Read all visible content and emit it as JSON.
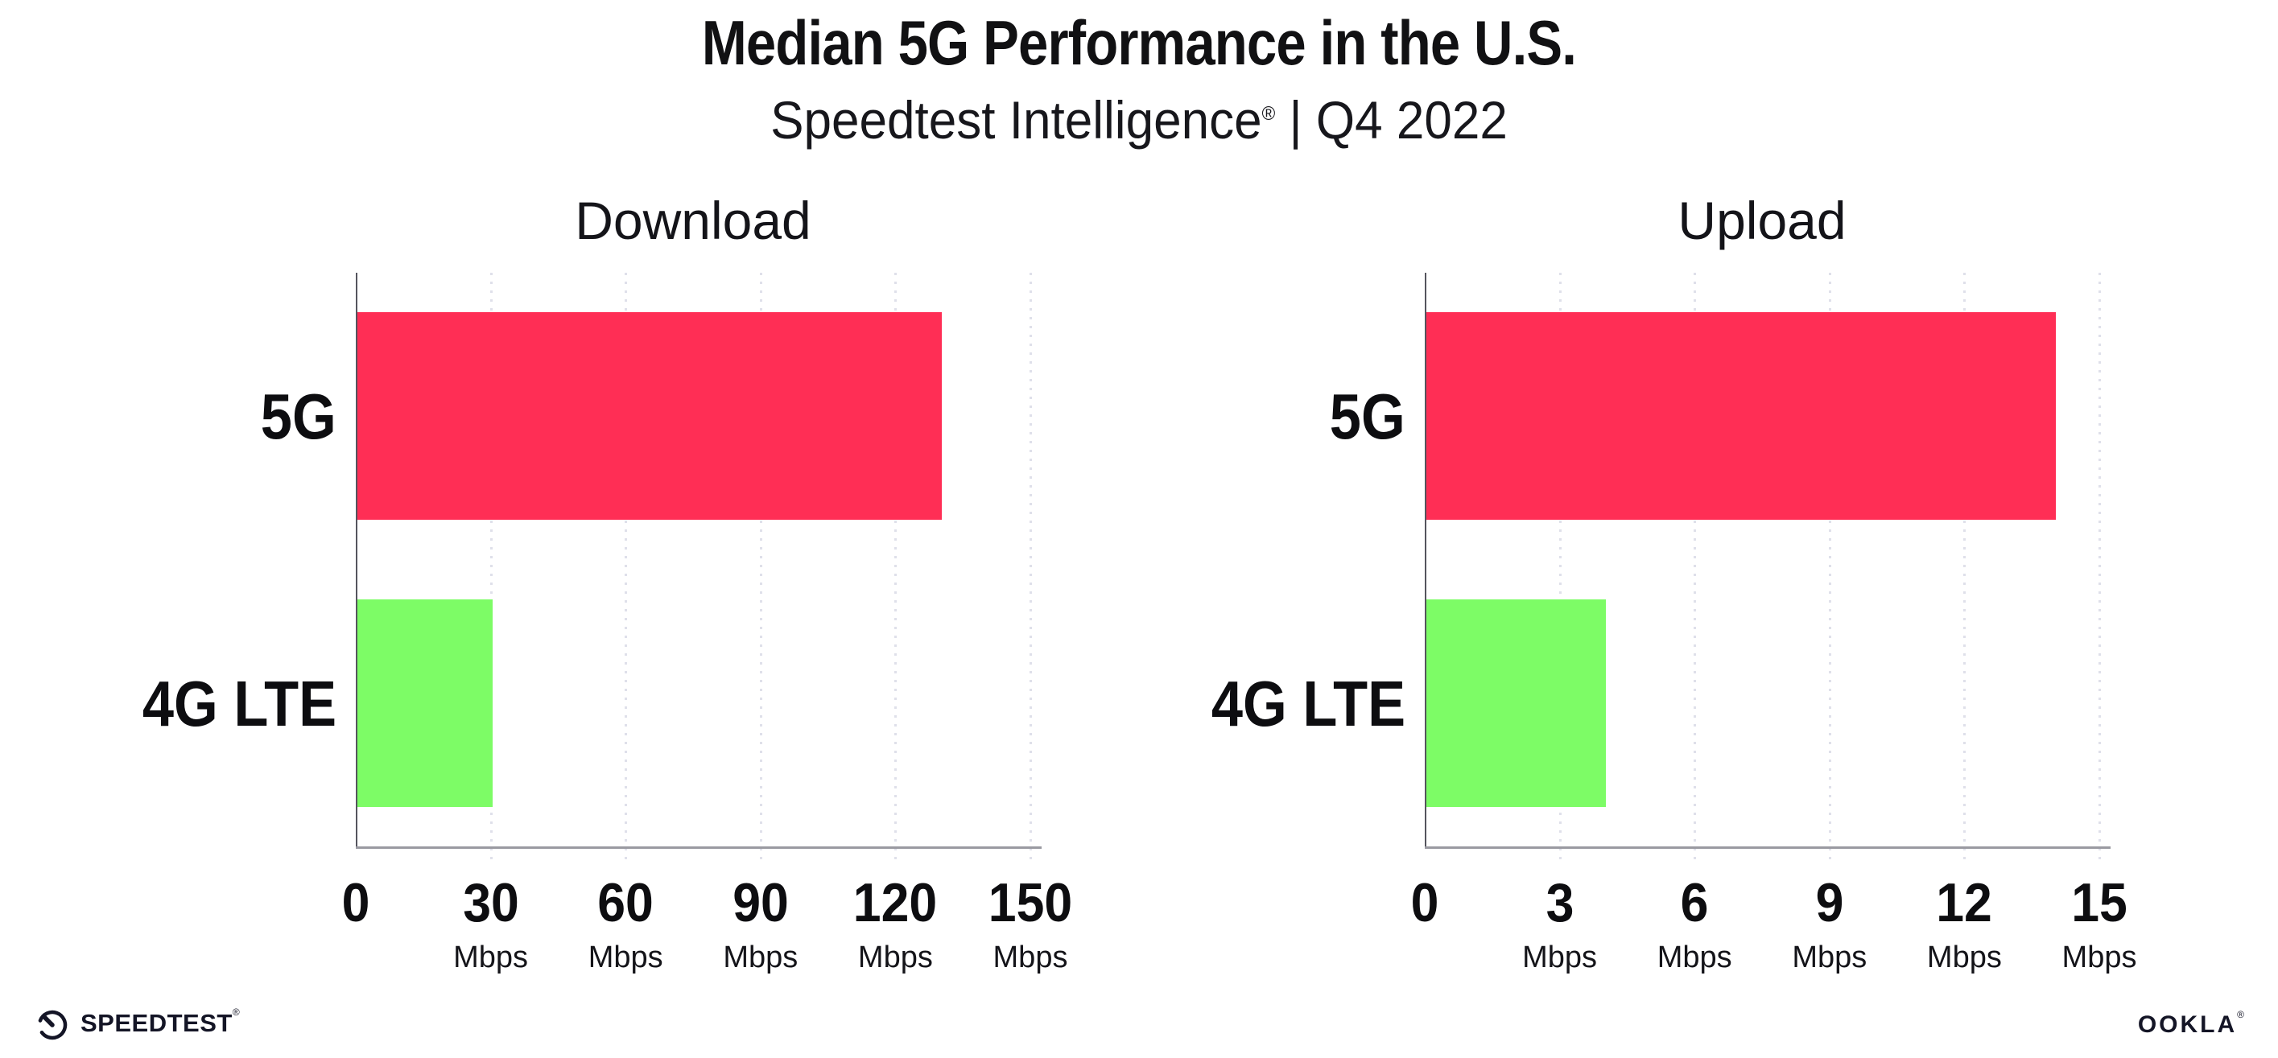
{
  "header": {
    "title": "Median 5G Performance in the U.S.",
    "subtitle_brand": "Speedtest Intelligence",
    "subtitle_reg": "®",
    "subtitle_rest": " | Q4 2022"
  },
  "chart_data": [
    {
      "type": "bar",
      "orientation": "horizontal",
      "title": "Download",
      "categories": [
        "5G",
        "4G LTE"
      ],
      "values": [
        130,
        30
      ],
      "unit": "Mbps",
      "xlim": [
        0,
        150
      ],
      "xticks": [
        0,
        30,
        60,
        90,
        120,
        150
      ],
      "bar_colors": [
        "#ff2e55",
        "#7dfc66"
      ],
      "grid": "dotted-vertical-at-ticks",
      "legend": "none"
    },
    {
      "type": "bar",
      "orientation": "horizontal",
      "title": "Upload",
      "categories": [
        "5G",
        "4G LTE"
      ],
      "values": [
        14,
        4
      ],
      "unit": "Mbps",
      "xlim": [
        0,
        15
      ],
      "xticks": [
        0,
        3,
        6,
        9,
        12,
        15
      ],
      "bar_colors": [
        "#ff2e55",
        "#7dfc66"
      ],
      "grid": "dotted-vertical-at-ticks",
      "legend": "none"
    }
  ],
  "footer": {
    "speedtest_logo_text": "SPEEDTEST",
    "speedtest_reg": "®",
    "ookla_logo_text": "OOKLA",
    "ookla_reg": "®"
  },
  "colors": {
    "bar_5g": "#ff2e55",
    "bar_4g_lte": "#7dfc66",
    "gridline": "#dfe0ea",
    "y_axis": "#55555e",
    "x_axis": "#9a9aa1",
    "text": "#111113"
  }
}
